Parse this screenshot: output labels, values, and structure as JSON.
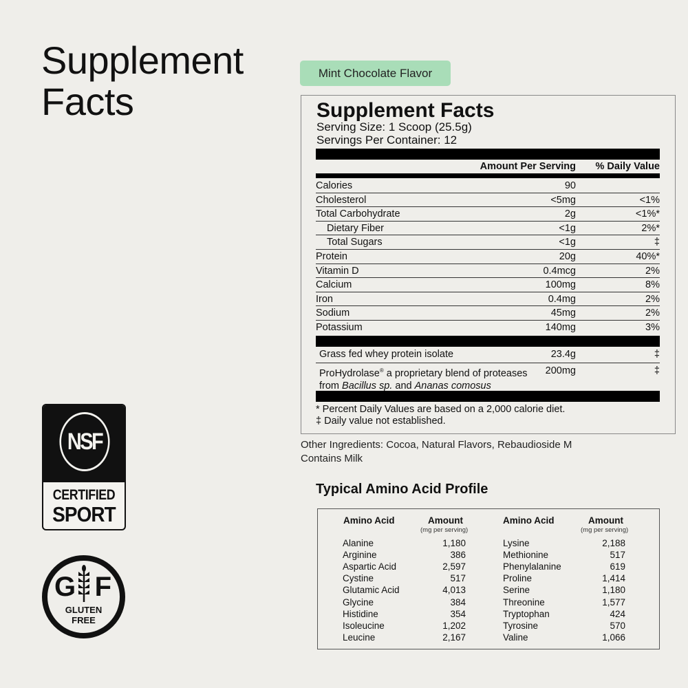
{
  "heading": "Supplement Facts",
  "flavor_badge": "Mint Chocolate Flavor",
  "colors": {
    "background": "#efeeea",
    "badge": "#a9ddb8",
    "text": "#111111"
  },
  "panel": {
    "title": "Supplement Facts",
    "serving_size": "Serving Size: 1 Scoop (25.5g)",
    "servings_per_container": "Servings Per Container: 12",
    "col_amount": "Amount Per Serving",
    "col_dv": "% Daily Value",
    "rows": [
      {
        "name": "Calories",
        "amount": "90",
        "dv": "",
        "indent": false
      },
      {
        "name": "Cholesterol",
        "amount": "<5mg",
        "dv": "<1%",
        "indent": false
      },
      {
        "name": "Total Carbohydrate",
        "amount": "2g",
        "dv": "<1%*",
        "indent": false
      },
      {
        "name": "Dietary Fiber",
        "amount": "<1g",
        "dv": "2%*",
        "indent": true
      },
      {
        "name": "Total Sugars",
        "amount": "<1g",
        "dv": "‡",
        "indent": true
      },
      {
        "name": "Protein",
        "amount": "20g",
        "dv": "40%*",
        "indent": false
      },
      {
        "name": "Vitamin D",
        "amount": "0.4mcg",
        "dv": "2%",
        "indent": false
      },
      {
        "name": "Calcium",
        "amount": "100mg",
        "dv": "8%",
        "indent": false
      },
      {
        "name": "Iron",
        "amount": "0.4mg",
        "dv": "2%",
        "indent": false
      },
      {
        "name": "Sodium",
        "amount": "45mg",
        "dv": "2%",
        "indent": false
      },
      {
        "name": "Potassium",
        "amount": "140mg",
        "dv": "3%",
        "indent": false
      }
    ],
    "ingredients": [
      {
        "name": "Grass fed whey protein isolate",
        "amount": "23.4g",
        "dv": "‡"
      },
      {
        "name_a": "ProHydrolase",
        "reg": "®",
        "name_b": " a proprietary blend of proteases",
        "line2_a": "from ",
        "line2_i1": "Bacillus sp.",
        "line2_b": " and ",
        "line2_i2": "Ananas comosus",
        "amount": "200mg",
        "dv": "‡"
      }
    ],
    "footnote_1": "* Percent Daily Values are based on a 2,000 calorie diet.",
    "footnote_2": "‡ Daily value not established."
  },
  "other_ingredients": "Other Ingredients: Cocoa, Natural Flavors, Rebaudioside M",
  "allergen": "Contains Milk",
  "amino": {
    "title": "Typical Amino Acid Profile",
    "col_name": "Amino Acid",
    "col_amount": "Amount",
    "col_unit": "(mg per serving)",
    "left": [
      [
        "Alanine",
        "1,180"
      ],
      [
        "Arginine",
        "386"
      ],
      [
        "Aspartic Acid",
        "2,597"
      ],
      [
        "Cystine",
        "517"
      ],
      [
        "Glutamic Acid",
        "4,013"
      ],
      [
        "Glycine",
        "384"
      ],
      [
        "Histidine",
        "354"
      ],
      [
        "Isoleucine",
        "1,202"
      ],
      [
        "Leucine",
        "2,167"
      ]
    ],
    "right": [
      [
        "Lysine",
        "2,188"
      ],
      [
        "Methionine",
        "517"
      ],
      [
        "Phenylalanine",
        "619"
      ],
      [
        "Proline",
        "1,414"
      ],
      [
        "Serine",
        "1,180"
      ],
      [
        "Threonine",
        "1,577"
      ],
      [
        "Tryptophan",
        "424"
      ],
      [
        "Tyrosine",
        "570"
      ],
      [
        "Valine",
        "1,066"
      ]
    ]
  },
  "badges": {
    "nsf_mark": "NSF",
    "nsf_line1": "CERTIFIED",
    "nsf_line2": "SPORT",
    "gf_g": "G",
    "gf_f": "F",
    "gf_line1": "GLUTEN",
    "gf_line2": "FREE"
  }
}
